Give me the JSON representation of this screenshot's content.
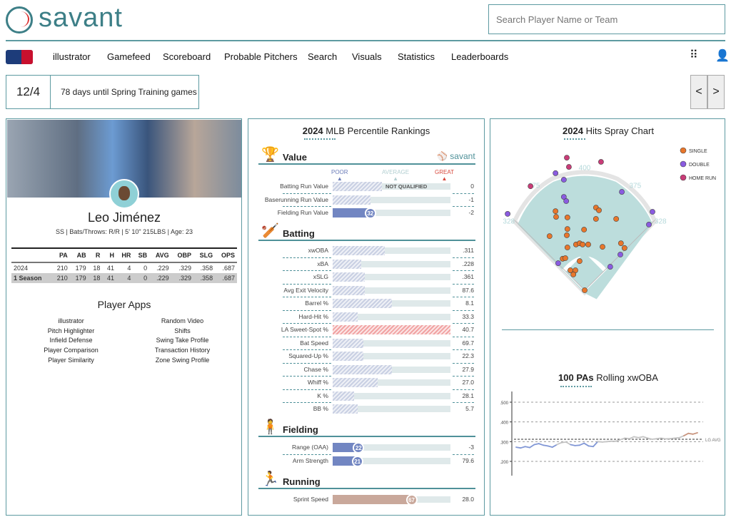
{
  "header": {
    "logo_text": "savant",
    "search_placeholder": "Search Player Name or Team"
  },
  "nav": {
    "items": [
      "illustrator",
      "Gamefeed",
      "Scoreboard",
      "Probable Pitchers",
      "Search",
      "Visuals",
      "Statistics",
      "Leaderboards"
    ]
  },
  "notice": {
    "date": "12/4",
    "text": "78 days until Spring Training games",
    "prev": "<",
    "next": ">"
  },
  "player": {
    "name": "Leo Jiménez",
    "details": "SS | Bats/Throws: R/R | 5' 10\" 215LBS | Age: 23",
    "stats_headers": [
      "",
      "PA",
      "AB",
      "R",
      "H",
      "HR",
      "SB",
      "AVG",
      "OBP",
      "SLG",
      "OPS"
    ],
    "stats_rows": [
      [
        "2024",
        "210",
        "179",
        "18",
        "41",
        "4",
        "0",
        ".229",
        ".329",
        ".358",
        ".687"
      ],
      [
        "1 Season",
        "210",
        "179",
        "18",
        "41",
        "4",
        "0",
        ".229",
        ".329",
        ".358",
        ".687"
      ]
    ],
    "apps_title": "Player Apps",
    "apps_left": [
      "illustrator",
      "Pitch Highlighter",
      "Infield Defense",
      "Player Comparison",
      "Player Similarity"
    ],
    "apps_right": [
      "Random Video",
      "Shifts",
      "Swing Take Profile",
      "Transaction History",
      "Zone Swing Profile"
    ]
  },
  "percentiles": {
    "year": "2024",
    "title": "MLB Percentile Rankings",
    "brand": "savant",
    "scale": [
      "POOR",
      "AVERAGE",
      "GREAT"
    ],
    "not_qualified": "NOT QUALIFIED",
    "sections": [
      {
        "name": "Value",
        "icon": "trophy",
        "rows": [
          {
            "label": "Batting Run Value",
            "value": "0",
            "pct": 42,
            "style": "hatch",
            "nq": true
          },
          {
            "label": "Baserunning Run Value",
            "value": "-1",
            "pct": 32,
            "style": "hatch"
          },
          {
            "label": "Fielding Run Value",
            "value": "-2",
            "pct": 32,
            "style": "blue",
            "show": "32"
          }
        ]
      },
      {
        "name": "Batting",
        "icon": "batter",
        "rows": [
          {
            "label": "xwOBA",
            "value": ".311",
            "pct": 44,
            "style": "hatch"
          },
          {
            "label": "xBA",
            "value": ".228",
            "pct": 24,
            "style": "hatch"
          },
          {
            "label": "xSLG",
            "value": ".361",
            "pct": 27,
            "style": "hatch"
          },
          {
            "label": "Avg Exit Velocity",
            "value": "87.6",
            "pct": 27,
            "style": "hatch"
          },
          {
            "label": "Barrel %",
            "value": "8.1",
            "pct": 50,
            "style": "hatch"
          },
          {
            "label": "Hard-Hit %",
            "value": "33.3",
            "pct": 21,
            "style": "hatch"
          },
          {
            "label": "LA Sweet-Spot %",
            "value": "40.7",
            "pct": 100,
            "style": "hatchred"
          },
          {
            "label": "Bat Speed",
            "value": "69.7",
            "pct": 26,
            "style": "hatch"
          },
          {
            "label": "Squared-Up %",
            "value": "22.3",
            "pct": 26,
            "style": "hatch"
          },
          {
            "label": "Chase %",
            "value": "27.9",
            "pct": 50,
            "style": "hatch"
          },
          {
            "label": "Whiff %",
            "value": "27.0",
            "pct": 38,
            "style": "hatch"
          },
          {
            "label": "K %",
            "value": "28.1",
            "pct": 18,
            "style": "hatch"
          },
          {
            "label": "BB %",
            "value": "5.7",
            "pct": 21,
            "style": "hatch"
          }
        ]
      },
      {
        "name": "Fielding",
        "icon": "fielder",
        "rows": [
          {
            "label": "Range (OAA)",
            "value": "-3",
            "pct": 22,
            "style": "blue",
            "show": "22"
          },
          {
            "label": "Arm Strength",
            "value": "79.6",
            "pct": 21,
            "style": "blue",
            "show": "21"
          }
        ]
      },
      {
        "name": "Running",
        "icon": "runner",
        "rows": [
          {
            "label": "Sprint Speed",
            "value": "28.0",
            "pct": 67,
            "style": "tan",
            "show": "67"
          }
        ]
      }
    ]
  },
  "colors": {
    "teal": "#4f9199",
    "blue": "#7286c2",
    "tan": "#c9a89b",
    "single": "#e8762b",
    "double": "#8a5be0",
    "hr": "#c93c78",
    "field": "#bcdddc"
  },
  "chart_data": [
    {
      "type": "scatter",
      "year": "2024",
      "title": "Hits Spray Chart",
      "units": "feet from home plate (x lateral, y toward CF)",
      "fence_labels": [
        "328",
        "375",
        "400",
        "375",
        "328"
      ],
      "legend": [
        "SINGLE",
        "DOUBLE",
        "HOME RUN"
      ],
      "series": [
        {
          "name": "SINGLE",
          "points": [
            [
              -98,
              266
            ],
            [
              -96,
              247
            ],
            [
              -58,
              245
            ],
            [
              38,
              278
            ],
            [
              48,
              269
            ],
            [
              38,
              240
            ],
            [
              106,
              240
            ],
            [
              -58,
              206
            ],
            [
              -2,
              204
            ],
            [
              -118,
              182
            ],
            [
              -60,
              185
            ],
            [
              -58,
              144
            ],
            [
              -29,
              154
            ],
            [
              -17,
              158
            ],
            [
              -7,
              154
            ],
            [
              12,
              154
            ],
            [
              60,
              146
            ],
            [
              122,
              158
            ],
            [
              134,
              142
            ],
            [
              -74,
              106
            ],
            [
              -65,
              108
            ],
            [
              -17,
              98
            ],
            [
              -48,
              67
            ],
            [
              -31,
              67
            ],
            [
              -38,
              53
            ],
            [
              0,
              0
            ]
          ]
        },
        {
          "name": "DOUBLE",
          "points": [
            [
              -98,
              394
            ],
            [
              -70,
              372
            ],
            [
              125,
              331
            ],
            [
              -70,
              314
            ],
            [
              -62,
              300
            ],
            [
              -259,
              257
            ],
            [
              228,
              264
            ],
            [
              216,
              221
            ],
            [
              120,
              120
            ],
            [
              -89,
              91
            ],
            [
              86,
              79
            ]
          ]
        },
        {
          "name": "HOME RUN",
          "points": [
            [
              -60,
              446
            ],
            [
              -53,
              415
            ],
            [
              55,
              432
            ],
            [
              -182,
              350
            ]
          ]
        }
      ]
    },
    {
      "type": "line",
      "title": "100 PAs Rolling xwOBA",
      "title_bold": "100 PAs",
      "yticks": [
        ".500",
        ".400",
        ".300",
        ".200"
      ],
      "ylim": [
        0.17,
        0.54
      ],
      "reference": {
        "label": "LG AVG",
        "value": 0.312
      },
      "values": [
        0.272,
        0.268,
        0.275,
        0.27,
        0.285,
        0.29,
        0.282,
        0.278,
        0.272,
        0.285,
        0.295,
        0.298,
        0.285,
        0.28,
        0.282,
        0.292,
        0.278,
        0.275,
        0.3,
        0.298,
        0.3,
        0.302,
        0.302,
        0.31,
        0.318,
        0.315,
        0.325,
        0.32,
        0.325,
        0.318,
        0.312,
        0.315,
        0.318,
        0.314,
        0.315,
        0.318,
        0.32,
        0.33,
        0.342,
        0.338,
        0.345
      ]
    }
  ]
}
